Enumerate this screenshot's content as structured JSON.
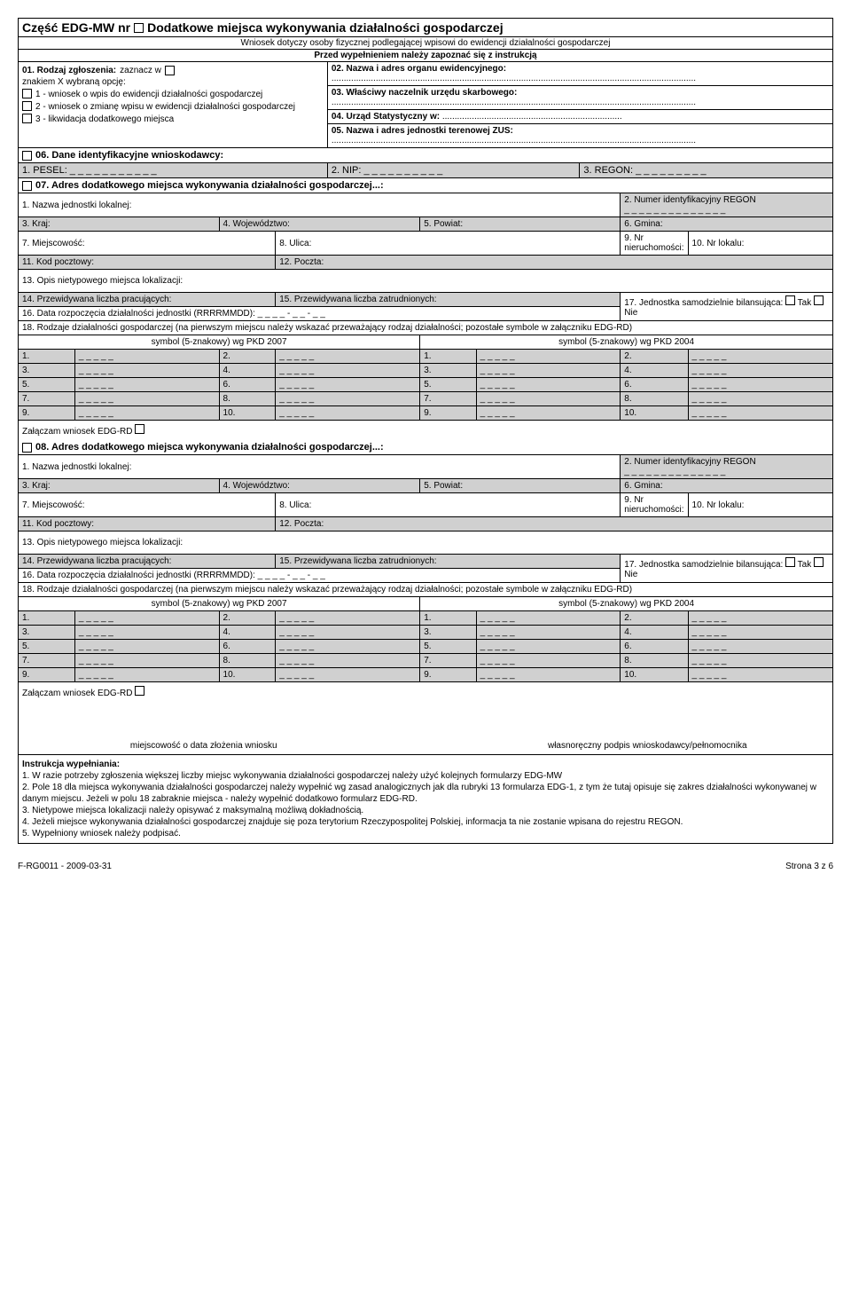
{
  "form": {
    "part_label": "Część EDG-MW nr",
    "title": "Dodatkowe miejsca wykonywania działalności gospodarczej",
    "subtitle1": "Wniosek dotyczy osoby fizycznej podlegającej wpisowi do ewidencji działalności gospodarczej",
    "subtitle2": "Przed wypełnieniem należy zapoznać się z instrukcją"
  },
  "sec01": {
    "header": "01. Rodzaj zgłoszenia:",
    "header2": "zaznacz w",
    "header3": "znakiem X wybraną opcję:",
    "opt1": "1 - wniosek o wpis do ewidencji działalności gospodarczej",
    "opt2": "2 - wniosek o zmianę wpisu w ewidencji działalności gospodarczej",
    "opt3": "3 - likwidacja dodatkowego miejsca"
  },
  "sec02": {
    "label": "02. Nazwa i adres organu ewidencyjnego:"
  },
  "sec03": {
    "label": "03. Właściwy naczelnik urzędu skarbowego:"
  },
  "sec04": {
    "label": "04. Urząd Statystyczny w:"
  },
  "sec05": {
    "label": "05. Nazwa i adres jednostki terenowej ZUS:"
  },
  "sec06": {
    "header": "06. Dane identyfikacyjne wnioskodawcy:",
    "pesel": "1. PESEL: _ _ _ _ _ _ _ _ _ _ _",
    "nip": "2. NIP: _ _ _ _ _ _ _ _ _ _",
    "regon": "3. REGON: _ _ _ _ _ _ _ _ _"
  },
  "sec07": {
    "header": "07. Adres dodatkowego miejsca wykonywania działalności gospodarczej...:"
  },
  "sec08": {
    "header": "08. Adres dodatkowego miejsca wykonywania działalności gospodarczej...:"
  },
  "addr": {
    "f1": "1. Nazwa jednostki lokalnej:",
    "f2": "2. Numer identyfikacyjny REGON",
    "f2b": "_ _ _ _ _ _ _ _ _   _ _ _ _ _",
    "f3": "3. Kraj:",
    "f4": "4. Województwo:",
    "f5": "5. Powiat:",
    "f6": "6. Gmina:",
    "f7": "7. Miejscowość:",
    "f8": "8. Ulica:",
    "f9": "9. Nr nieruchomości:",
    "f10": "10. Nr lokalu:",
    "f11": "11. Kod pocztowy:",
    "f12": "12. Poczta:",
    "f13": "13. Opis nietypowego miejsca lokalizacji:",
    "f14": "14. Przewidywana liczba pracujących:",
    "f15": "15. Przewidywana liczba zatrudnionych:",
    "f16": "16. Data rozpoczęcia działalności jednostki (RRRRMMDD): _ _ _ _ - _ _ - _ _",
    "f17": "17. Jednostka samodzielnie bilansująca:",
    "tak": "Tak",
    "nie": "Nie",
    "f18": "18. Rodzaje działalności gospodarczej (na pierwszym miejscu należy wskazać przeważający rodzaj działalności; pozostałe symbole w załączniku EDG-RD)",
    "pkd2007": "symbol (5-znakowy) wg PKD 2007",
    "pkd2004": "symbol (5-znakowy) wg PKD 2004",
    "attach": "Załączam wniosek EDG-RD",
    "blank5": "_ _ _ _ _"
  },
  "pkd_nums": [
    "1.",
    "2.",
    "3.",
    "4.",
    "5.",
    "6.",
    "7.",
    "8.",
    "9.",
    "10."
  ],
  "sign": {
    "left": "miejscowość o data złożenia wniosku",
    "right": "własnoręczny podpis wnioskodawcy/pełnomocnika"
  },
  "instr": {
    "header": "Instrukcja wypełniania:",
    "l1": "1. W razie potrzeby zgłoszenia większej liczby miejsc wykonywania działalności gospodarczej należy użyć kolejnych formularzy EDG-MW",
    "l2": "2. Pole 18 dla miejsca wykonywania działalności gospodarczej należy wypełnić wg zasad analogicznych jak dla rubryki 13 formularza EDG-1, z tym że tutaj opisuje się zakres działalności wykonywanej w danym miejscu. Jeżeli w polu 18 zabraknie miejsca - należy wypełnić dodatkowo formularz EDG-RD.",
    "l3": "3. Nietypowe miejsca lokalizacji należy opisywać z maksymalną możliwą dokładnością.",
    "l4": "4. Jeżeli miejsce wykonywania działalności gospodarczej znajduje się poza terytorium Rzeczypospolitej Polskiej, informacja ta nie zostanie wpisana do rejestru REGON.",
    "l5": "5. Wypełniony wniosek należy podpisać."
  },
  "pagefoot": {
    "left": "F-RG0011 - 2009-03-31",
    "right": "Strona 3 z 6"
  }
}
